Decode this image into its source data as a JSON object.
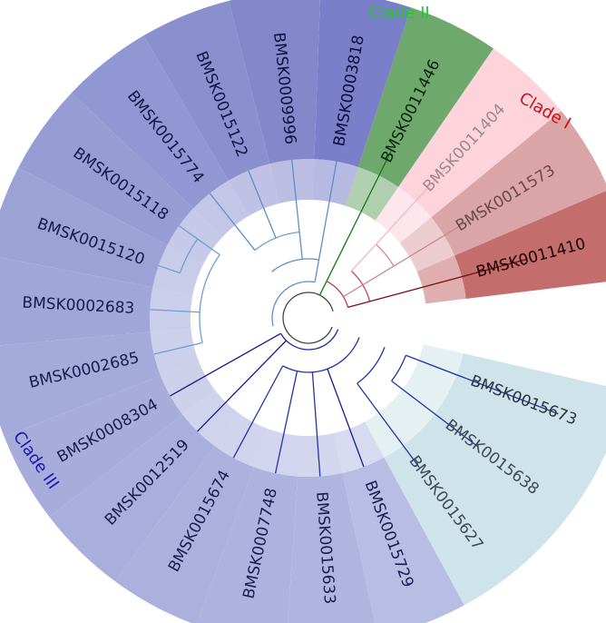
{
  "clades": [
    {
      "id": "clade-1",
      "label": "Clade I",
      "color": "#cc1111"
    },
    {
      "id": "clade-2",
      "label": "Clade II",
      "color": "#22cc22"
    },
    {
      "id": "clade-3",
      "label": "Clade III",
      "color": "#1a1ab3"
    }
  ],
  "leaves": [
    {
      "label": "BMSK0011410",
      "clade": "clade-1",
      "bg": "#c46d6d",
      "text": "#1a0000",
      "branch": "#7a1010"
    },
    {
      "label": "BMSK0011573",
      "clade": "clade-1",
      "bg": "#dba4a7",
      "text": "#6a4a4c",
      "branch": "#c48a90"
    },
    {
      "label": "BMSK0011404",
      "clade": "clade-1",
      "bg": "#fdd3dc",
      "text": "#a08890",
      "branch": "#f2b6c2"
    },
    {
      "label": "BMSK0011446",
      "clade": "clade-2",
      "bg": "#6ea86c",
      "text": "#0a230a",
      "branch": "#137a13"
    },
    {
      "label": "BMSK0003818",
      "clade": "clade-3",
      "bg": "#7a7fc9",
      "text": "#0d0f3a",
      "branch": "#5c8fc7"
    },
    {
      "label": "BMSK0009996",
      "clade": "clade-3",
      "bg": "#8388cb",
      "text": "#101240",
      "branch": "#5c8fc7"
    },
    {
      "label": "BMSK0015122",
      "clade": "clade-3",
      "bg": "#8a8fce",
      "text": "#121545",
      "branch": "#5c8fc7"
    },
    {
      "label": "BMSK0015774",
      "clade": "clade-3",
      "bg": "#9197d2",
      "text": "#151848",
      "branch": "#5c8fc7"
    },
    {
      "label": "BMSK0015118",
      "clade": "clade-3",
      "bg": "#979dd4",
      "text": "#16194a",
      "branch": "#6aa0cf"
    },
    {
      "label": "BMSK0015120",
      "clade": "clade-3",
      "bg": "#9ca2d6",
      "text": "#171a4c",
      "branch": "#6aa0cf"
    },
    {
      "label": "BMSK0002683",
      "clade": "clade-3",
      "bg": "#a0a6d8",
      "text": "#181b4e",
      "branch": "#6aa0cf"
    },
    {
      "label": "BMSK0002685",
      "clade": "clade-3",
      "bg": "#a4aada",
      "text": "#191c50",
      "branch": "#6aa0cf"
    },
    {
      "label": "BMSK0008304",
      "clade": "clade-3",
      "bg": "#a7acdb",
      "text": "#1a1d52",
      "branch": "#121a8c"
    },
    {
      "label": "BMSK0012519",
      "clade": "clade-3",
      "bg": "#a9aedc",
      "text": "#1a1d52",
      "branch": "#121a8c"
    },
    {
      "label": "BMSK0015674",
      "clade": "clade-3",
      "bg": "#abb0dd",
      "text": "#1a1d52",
      "branch": "#2433a8"
    },
    {
      "label": "BMSK0007748",
      "clade": "clade-3",
      "bg": "#adb2de",
      "text": "#1a1d52",
      "branch": "#2433a8"
    },
    {
      "label": "BMSK0015633",
      "clade": "clade-3",
      "bg": "#b0b5df",
      "text": "#1a1d52",
      "branch": "#2433a8"
    },
    {
      "label": "BMSK0015729",
      "clade": "clade-3",
      "bg": "#b8bde3",
      "text": "#1a1d52",
      "branch": "#121a8c"
    },
    {
      "label": "BMSK0015627",
      "clade": "clade-3",
      "bg": "#cfe3ea",
      "text": "#3e4a55",
      "branch": "#2433a8"
    },
    {
      "label": "BMSK0015638",
      "clade": "clade-3",
      "bg": "#cfe3ea",
      "text": "#3e4a55",
      "branch": "#2433a8"
    },
    {
      "label": "BMSK0015673",
      "clade": "clade-3",
      "bg": "#cfe3ea",
      "text": "#2a3540",
      "branch": "#2433a8"
    }
  ]
}
